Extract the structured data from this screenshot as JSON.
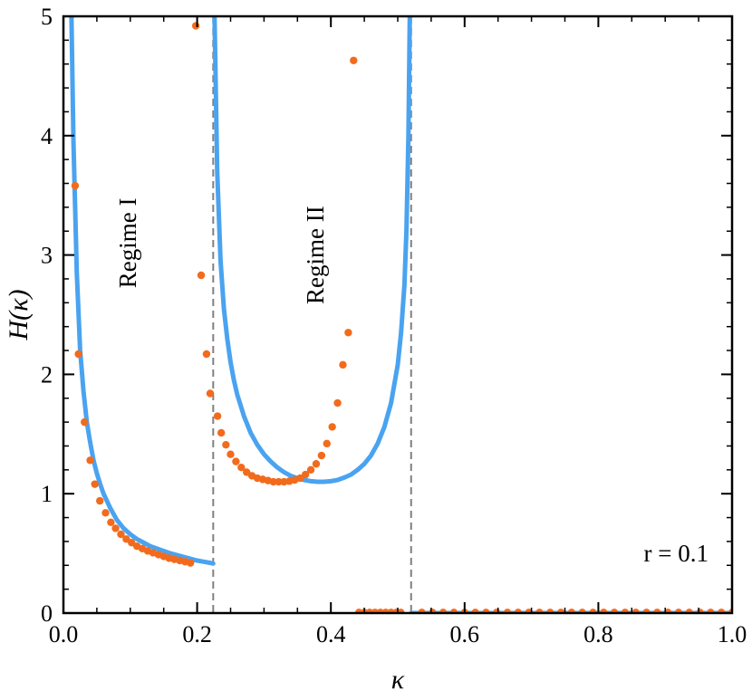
{
  "chart_data": {
    "type": "line",
    "xlabel": "κ",
    "ylabel": "H(κ)",
    "xlim": [
      0,
      1
    ],
    "ylim": [
      0,
      5
    ],
    "x_ticks": [
      "0.0",
      "0.2",
      "0.4",
      "0.6",
      "0.8",
      "1.0"
    ],
    "y_ticks": [
      "0",
      "1",
      "2",
      "3",
      "4",
      "5"
    ],
    "grid": false,
    "colors": {
      "curve": "#4aa3f0",
      "points": "#f26b1d",
      "boundary": "#808080"
    },
    "boundaries": [
      0.224,
      0.52
    ],
    "annotations": {
      "regime1": "Regime I",
      "regime2": "Regime II",
      "param": "r = 0.1"
    },
    "series": [
      {
        "kind": "curve",
        "segments": [
          {
            "x": [
              0.012,
              0.015,
              0.02,
              0.025,
              0.03,
              0.035,
              0.04,
              0.045,
              0.05,
              0.055,
              0.06,
              0.065,
              0.07,
              0.075,
              0.08,
              0.09,
              0.1,
              0.11,
              0.12,
              0.13,
              0.14,
              0.15,
              0.16,
              0.17,
              0.18,
              0.19,
              0.2,
              0.21,
              0.22,
              0.224
            ],
            "y": [
              5.0,
              3.95,
              2.85,
              2.2,
              1.86,
              1.6,
              1.43,
              1.28,
              1.17,
              1.08,
              1.0,
              0.94,
              0.88,
              0.83,
              0.78,
              0.71,
              0.66,
              0.62,
              0.59,
              0.56,
              0.54,
              0.52,
              0.5,
              0.485,
              0.47,
              0.455,
              0.44,
              0.43,
              0.42,
              0.415
            ]
          },
          {
            "x": [
              0.226,
              0.23,
              0.235,
              0.24,
              0.245,
              0.25,
              0.255,
              0.26,
              0.27,
              0.28,
              0.29,
              0.3,
              0.31,
              0.32,
              0.33,
              0.34,
              0.35,
              0.36,
              0.37,
              0.38,
              0.39,
              0.4,
              0.41,
              0.42,
              0.43,
              0.44,
              0.45,
              0.46,
              0.47,
              0.48,
              0.49,
              0.5,
              0.505,
              0.51,
              0.513,
              0.516,
              0.518
            ],
            "y": [
              5.0,
              3.7,
              2.95,
              2.55,
              2.3,
              2.1,
              1.95,
              1.83,
              1.65,
              1.51,
              1.41,
              1.33,
              1.27,
              1.22,
              1.18,
              1.15,
              1.13,
              1.115,
              1.105,
              1.1,
              1.1,
              1.105,
              1.115,
              1.135,
              1.16,
              1.2,
              1.25,
              1.32,
              1.42,
              1.56,
              1.76,
              2.08,
              2.35,
              2.75,
              3.2,
              4.0,
              5.0
            ]
          },
          {
            "x": [
              0.52,
              1.0
            ],
            "y": [
              0.0,
              0.0
            ]
          }
        ]
      },
      {
        "kind": "points",
        "x": [
          0.0175,
          0.0225,
          0.0315,
          0.04,
          0.047,
          0.0545,
          0.063,
          0.071,
          0.078,
          0.086,
          0.094,
          0.102,
          0.11,
          0.118,
          0.126,
          0.134,
          0.142,
          0.15,
          0.158,
          0.166,
          0.174,
          0.182,
          0.19,
          0.198,
          0.206,
          0.214,
          0.2195,
          0.2305,
          0.236,
          0.243,
          0.25,
          0.258,
          0.266,
          0.274,
          0.282,
          0.29,
          0.298,
          0.306,
          0.314,
          0.322,
          0.33,
          0.338,
          0.346,
          0.354,
          0.362,
          0.37,
          0.378,
          0.386,
          0.394,
          0.402,
          0.41,
          0.418,
          0.426,
          0.434,
          0.442,
          0.45,
          0.458,
          0.466,
          0.474,
          0.482,
          0.49,
          0.498,
          0.5045,
          0.536,
          0.552,
          0.568,
          0.584,
          0.6,
          0.616,
          0.632,
          0.648,
          0.664,
          0.68,
          0.696,
          0.712,
          0.728,
          0.744,
          0.76,
          0.776,
          0.792,
          0.808,
          0.824,
          0.84,
          0.856,
          0.872,
          0.888,
          0.904,
          0.92,
          0.936,
          0.952,
          0.968,
          0.984,
          1.0
        ],
        "y": [
          3.58,
          2.17,
          1.6,
          1.28,
          1.08,
          0.94,
          0.84,
          0.76,
          0.71,
          0.66,
          0.62,
          0.59,
          0.56,
          0.54,
          0.52,
          0.505,
          0.49,
          0.475,
          0.46,
          0.45,
          0.44,
          0.43,
          0.42,
          4.92,
          2.83,
          2.17,
          1.84,
          1.65,
          1.51,
          1.41,
          1.33,
          1.27,
          1.22,
          1.18,
          1.15,
          1.13,
          1.12,
          1.11,
          1.1,
          1.1,
          1.1,
          1.105,
          1.115,
          1.13,
          1.16,
          1.2,
          1.25,
          1.32,
          1.42,
          1.56,
          1.76,
          2.08,
          2.35,
          4.63,
          0.005,
          0.005,
          0.005,
          0.005,
          0.005,
          0.005,
          0.005,
          0.005,
          0.005,
          0.005,
          0.005,
          0.005,
          0.005,
          0.005,
          0.005,
          0.005,
          0.005,
          0.005,
          0.005,
          0.005,
          0.005,
          0.005,
          0.005,
          0.005,
          0.005,
          0.005,
          0.005,
          0.005,
          0.005,
          0.005,
          0.005,
          0.005,
          0.005,
          0.005,
          0.005,
          0.005,
          0.005,
          0.005,
          0.005
        ],
        "x_note": ""
      }
    ]
  }
}
